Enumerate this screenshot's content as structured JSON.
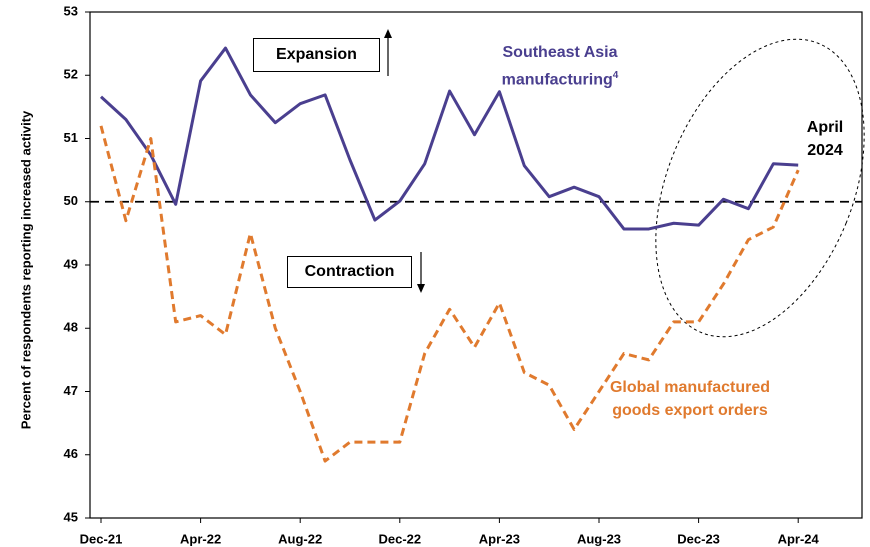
{
  "chart_data": {
    "type": "line",
    "y_axis_label": "Percent of respondents reporting increased activity",
    "categories": [
      "Dec-21",
      null,
      null,
      null,
      "Apr-22",
      null,
      null,
      null,
      "Aug-22",
      null,
      null,
      null,
      "Dec-22",
      null,
      null,
      null,
      "Apr-23",
      null,
      null,
      null,
      "Aug-23",
      null,
      null,
      null,
      "Dec-23",
      null,
      null,
      null,
      "Apr-24"
    ],
    "series": [
      {
        "name": "Southeast Asia manufacturing",
        "footnote_marker": "4",
        "color": "#4a3f8f",
        "dashed": false,
        "values": [
          51.66,
          51.3,
          50.74,
          49.96,
          51.91,
          52.43,
          51.69,
          51.25,
          51.55,
          51.69,
          50.66,
          49.71,
          50.01,
          50.6,
          51.75,
          51.06,
          51.74,
          50.57,
          50.08,
          50.23,
          50.08,
          49.57,
          49.57,
          49.66,
          49.63,
          50.04,
          49.89,
          50.6,
          50.58
        ]
      },
      {
        "name": "Global manufactured goods export orders",
        "color": "#e07a2e",
        "dashed": true,
        "values": [
          51.2,
          49.7,
          51.0,
          48.1,
          48.2,
          47.9,
          49.5,
          48.0,
          47.0,
          45.9,
          46.2,
          46.2,
          46.2,
          47.6,
          48.3,
          47.7,
          48.4,
          47.3,
          47.1,
          46.4,
          47.0,
          47.6,
          47.5,
          48.1,
          48.1,
          48.7,
          49.4,
          49.6,
          50.5
        ]
      }
    ],
    "ylim": [
      45,
      53
    ],
    "yticks": [
      45,
      46,
      47,
      48,
      49,
      50,
      51,
      52,
      53
    ],
    "reference_line": 50,
    "annotations": {
      "expansion": "Expansion",
      "contraction": "Contraction",
      "highlight": "April 2024"
    }
  }
}
